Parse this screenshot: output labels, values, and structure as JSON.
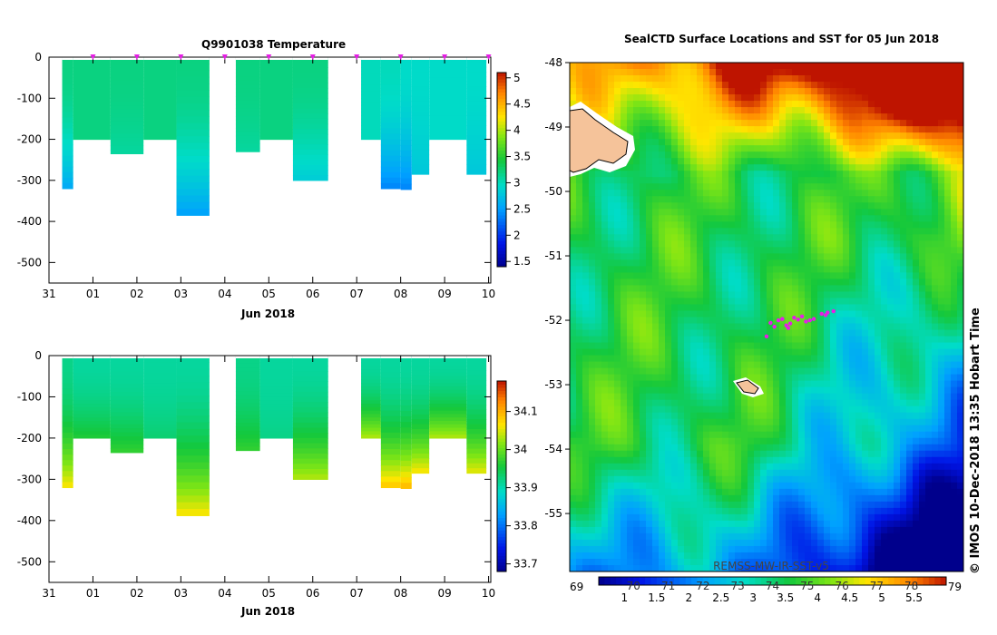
{
  "page": {
    "copyright": "© IMOS 10-Dec-2018 13:35 Hobart Time"
  },
  "chart_data": [
    {
      "type": "heatmap",
      "title": "Q9901038  Temperature",
      "xlabel": "Jun 2018",
      "x_ticks": [
        "31",
        "01",
        "02",
        "03",
        "04",
        "05",
        "06",
        "07",
        "08",
        "09",
        "10"
      ],
      "y_ticks": [
        "0",
        "-100",
        "-200",
        "-300",
        "-400",
        "-500"
      ],
      "ylim": [
        -550,
        0
      ],
      "colorbar": {
        "min": 1.4,
        "max": 5.1,
        "ticks": [
          "1.5",
          "2",
          "2.5",
          "3",
          "3.5",
          "4",
          "4.5",
          "5"
        ]
      },
      "profile_markers_day": [
        1.0,
        2.0,
        3.0,
        4.0,
        5.0,
        6.0,
        7.0,
        8.0,
        9.0,
        10.0
      ],
      "profiles": [
        {
          "start": 0.3,
          "end": 0.55,
          "max_depth": 320,
          "surface": 3.2,
          "deep": 2.6
        },
        {
          "start": 0.55,
          "end": 1.4,
          "max_depth": 200,
          "surface": 3.2,
          "deep": 3.2
        },
        {
          "start": 1.4,
          "end": 2.15,
          "max_depth": 235,
          "surface": 3.2,
          "deep": 3.1
        },
        {
          "start": 2.15,
          "end": 2.9,
          "max_depth": 200,
          "surface": 3.2,
          "deep": 3.2
        },
        {
          "start": 2.9,
          "end": 3.65,
          "max_depth": 385,
          "surface": 3.2,
          "deep": 2.55
        },
        {
          "start": 4.25,
          "end": 4.8,
          "max_depth": 230,
          "surface": 3.2,
          "deep": 3.1
        },
        {
          "start": 4.8,
          "end": 5.55,
          "max_depth": 200,
          "surface": 3.2,
          "deep": 3.2
        },
        {
          "start": 5.55,
          "end": 6.35,
          "max_depth": 300,
          "surface": 3.2,
          "deep": 2.85
        },
        {
          "start": 7.1,
          "end": 7.55,
          "max_depth": 200,
          "surface": 3.0,
          "deep": 3.0
        },
        {
          "start": 7.55,
          "end": 8.0,
          "max_depth": 320,
          "surface": 3.0,
          "deep": 2.4
        },
        {
          "start": 8.0,
          "end": 8.25,
          "max_depth": 322,
          "surface": 2.95,
          "deep": 2.4
        },
        {
          "start": 8.25,
          "end": 8.65,
          "max_depth": 285,
          "surface": 2.95,
          "deep": 2.8
        },
        {
          "start": 8.65,
          "end": 9.5,
          "max_depth": 200,
          "surface": 2.95,
          "deep": 2.95
        },
        {
          "start": 9.5,
          "end": 9.95,
          "max_depth": 285,
          "surface": 2.95,
          "deep": 2.8
        }
      ]
    },
    {
      "type": "heatmap",
      "title": "",
      "xlabel": "Jun 2018",
      "x_ticks": [
        "31",
        "01",
        "02",
        "03",
        "04",
        "05",
        "06",
        "07",
        "08",
        "09",
        "10"
      ],
      "y_ticks": [
        "0",
        "-100",
        "-200",
        "-300",
        "-400",
        "-500"
      ],
      "ylim": [
        -550,
        0
      ],
      "colorbar": {
        "min": 33.68,
        "max": 34.18,
        "ticks": [
          "33.7",
          "33.8",
          "33.9",
          "34",
          "34.1"
        ]
      },
      "profiles": [
        {
          "start": 0.3,
          "end": 0.55,
          "max_depth": 320,
          "surface": 33.92,
          "deep": 34.06
        },
        {
          "start": 0.55,
          "end": 1.4,
          "max_depth": 200,
          "surface": 33.91,
          "deep": 33.96
        },
        {
          "start": 1.4,
          "end": 2.15,
          "max_depth": 235,
          "surface": 33.91,
          "deep": 33.97
        },
        {
          "start": 2.15,
          "end": 2.9,
          "max_depth": 200,
          "surface": 33.91,
          "deep": 33.93
        },
        {
          "start": 2.9,
          "end": 3.65,
          "max_depth": 388,
          "surface": 33.91,
          "deep": 34.06
        },
        {
          "start": 4.25,
          "end": 4.8,
          "max_depth": 230,
          "surface": 33.92,
          "deep": 33.97
        },
        {
          "start": 4.8,
          "end": 5.55,
          "max_depth": 200,
          "surface": 33.91,
          "deep": 33.92
        },
        {
          "start": 5.55,
          "end": 6.35,
          "max_depth": 300,
          "surface": 33.91,
          "deep": 34.03
        },
        {
          "start": 7.1,
          "end": 7.55,
          "max_depth": 200,
          "surface": 33.91,
          "deep": 34.03
        },
        {
          "start": 7.55,
          "end": 8.0,
          "max_depth": 320,
          "surface": 33.91,
          "deep": 34.08
        },
        {
          "start": 8.0,
          "end": 8.25,
          "max_depth": 322,
          "surface": 33.91,
          "deep": 34.09
        },
        {
          "start": 8.25,
          "end": 8.65,
          "max_depth": 285,
          "surface": 33.91,
          "deep": 34.06
        },
        {
          "start": 8.65,
          "end": 9.5,
          "max_depth": 200,
          "surface": 33.91,
          "deep": 34.03
        },
        {
          "start": 9.5,
          "end": 9.95,
          "max_depth": 285,
          "surface": 33.91,
          "deep": 34.05
        }
      ]
    },
    {
      "type": "heatmap",
      "title": "SealCTD Surface Locations and SST for 05 Jun 2018",
      "y_ticks": [
        "-48",
        "-49",
        "-50",
        "-51",
        "-52",
        "-53",
        "-54",
        "-55"
      ],
      "ylim": [
        -55.9,
        -48.0
      ],
      "colorbar_top": {
        "min": 0.6,
        "max": 6.0,
        "ticks": [
          "1",
          "1.5",
          "2",
          "2.5",
          "3",
          "3.5",
          "4",
          "4.5",
          "5",
          "5.5"
        ]
      },
      "colorbar_bottom": {
        "left_label": "69",
        "right_label": "79",
        "ticks": [
          "70",
          "71",
          "72",
          "73",
          "74",
          "75",
          "76",
          "77",
          "78"
        ]
      },
      "watermark": "REMSS-MW-IR-SST-v5",
      "colors": {
        "land": "#f5c39a",
        "seal_points": "#e61ee6"
      },
      "seal_locations": [
        {
          "lon": 0.53,
          "lat": -52.0
        },
        {
          "lon": 0.54,
          "lat": -51.98
        },
        {
          "lon": 0.56,
          "lat": -52.05
        },
        {
          "lon": 0.58,
          "lat": -51.99
        },
        {
          "lon": 0.6,
          "lat": -52.02
        },
        {
          "lon": 0.52,
          "lat": -52.1
        },
        {
          "lon": 0.55,
          "lat": -52.08
        },
        {
          "lon": 0.57,
          "lat": -51.96
        },
        {
          "lon": 0.51,
          "lat": -52.04
        },
        {
          "lon": 0.59,
          "lat": -51.94
        },
        {
          "lon": 0.62,
          "lat": -51.98
        },
        {
          "lon": 0.5,
          "lat": -52.25
        },
        {
          "lon": 0.61,
          "lat": -52.0
        },
        {
          "lon": 0.555,
          "lat": -52.12
        },
        {
          "lon": 0.64,
          "lat": -51.9
        },
        {
          "lon": 0.655,
          "lat": -51.88
        },
        {
          "lon": 0.67,
          "lat": -51.86
        },
        {
          "lon": 0.65,
          "lat": -51.92
        }
      ]
    }
  ]
}
